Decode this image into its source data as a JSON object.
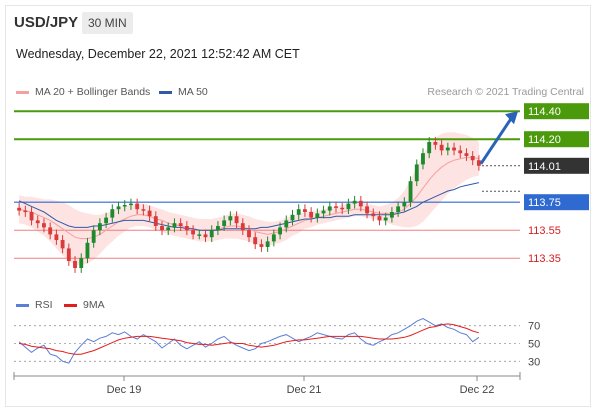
{
  "header": {
    "symbol": "USD/JPY",
    "timeframe": "30 MIN",
    "datetime": "Wednesday, December 22, 2021 12:52:42 AM CET"
  },
  "legend": {
    "ma20_label": "MA 20 + Bollinger Bands",
    "ma50_label": "MA 50",
    "credit": "Research © 2021 Trading Central",
    "rsi_label": "RSI",
    "ma9_label": "9MA"
  },
  "colors": {
    "resistance": "#4a9a0b",
    "support": "#2f6ad0",
    "support2": "#f08080",
    "support2_text": "#d52020",
    "ma20": "#f5a0a0",
    "band_fill": "#fde3e1",
    "ma50": "#2e5aa8",
    "rsi": "#5c7fd6",
    "ma9": "#e31e1e",
    "candle": "#d93a3a",
    "candle_up": "#1e8a2e",
    "arrow": "#2a62b8",
    "price_tag": "#333333"
  },
  "chart_data": {
    "type": "candlestick",
    "instrument": "USD/JPY",
    "interval": "30 MIN",
    "x_tick_labels": [
      "Dec 19",
      "Dec 21",
      "Dec 22"
    ],
    "ylim": [
      113.18,
      114.48
    ],
    "levels": [
      {
        "label": "114.40",
        "value": 114.4,
        "kind": "resistance"
      },
      {
        "label": "114.20",
        "value": 114.2,
        "kind": "resistance"
      },
      {
        "label": "113.75",
        "value": 113.75,
        "kind": "support"
      },
      {
        "label": "113.55",
        "value": 113.55,
        "kind": "support"
      },
      {
        "label": "113.35",
        "value": 113.35,
        "kind": "support"
      }
    ],
    "last_price": {
      "label": "114.01",
      "value": 114.01
    },
    "close": [
      113.69,
      113.68,
      113.62,
      113.6,
      113.57,
      113.52,
      113.48,
      113.42,
      113.33,
      113.28,
      113.35,
      113.46,
      113.55,
      113.6,
      113.64,
      113.7,
      113.72,
      113.73,
      113.74,
      113.7,
      113.69,
      113.65,
      113.58,
      113.55,
      113.57,
      113.6,
      113.58,
      113.55,
      113.52,
      113.52,
      113.5,
      113.55,
      113.58,
      113.62,
      113.65,
      113.6,
      113.55,
      113.5,
      113.45,
      113.43,
      113.47,
      113.52,
      113.57,
      113.62,
      113.66,
      113.7,
      113.68,
      113.64,
      113.67,
      113.69,
      113.72,
      113.71,
      113.7,
      113.74,
      113.76,
      113.72,
      113.67,
      113.65,
      113.62,
      113.64,
      113.68,
      113.72,
      113.75,
      113.9,
      114.02,
      114.1,
      114.18,
      114.16,
      114.12,
      114.14,
      114.12,
      114.1,
      114.08,
      114.05,
      114.01
    ],
    "ma20": [
      113.7,
      113.69,
      113.68,
      113.66,
      113.64,
      113.62,
      113.59,
      113.56,
      113.53,
      113.5,
      113.49,
      113.49,
      113.5,
      113.52,
      113.55,
      113.58,
      113.61,
      113.63,
      113.65,
      113.66,
      113.66,
      113.65,
      113.63,
      113.62,
      113.6,
      113.59,
      113.58,
      113.57,
      113.56,
      113.55,
      113.55,
      113.55,
      113.56,
      113.57,
      113.58,
      113.58,
      113.57,
      113.56,
      113.54,
      113.53,
      113.52,
      113.53,
      113.54,
      113.56,
      113.58,
      113.6,
      113.62,
      113.63,
      113.64,
      113.65,
      113.66,
      113.67,
      113.68,
      113.69,
      113.7,
      113.7,
      113.69,
      113.68,
      113.67,
      113.67,
      113.67,
      113.68,
      113.7,
      113.74,
      113.79,
      113.85,
      113.91,
      113.96,
      114.0,
      114.03,
      114.05,
      114.06,
      114.07,
      114.07,
      114.06
    ],
    "band_halfwidth": [
      0.1,
      0.1,
      0.11,
      0.12,
      0.13,
      0.15,
      0.17,
      0.19,
      0.2,
      0.2,
      0.19,
      0.18,
      0.16,
      0.14,
      0.12,
      0.11,
      0.1,
      0.09,
      0.08,
      0.08,
      0.08,
      0.08,
      0.08,
      0.08,
      0.08,
      0.08,
      0.08,
      0.08,
      0.08,
      0.08,
      0.08,
      0.08,
      0.08,
      0.08,
      0.09,
      0.09,
      0.09,
      0.09,
      0.09,
      0.09,
      0.09,
      0.08,
      0.08,
      0.08,
      0.07,
      0.07,
      0.06,
      0.06,
      0.05,
      0.05,
      0.05,
      0.05,
      0.05,
      0.05,
      0.05,
      0.05,
      0.05,
      0.05,
      0.05,
      0.06,
      0.08,
      0.1,
      0.13,
      0.17,
      0.21,
      0.24,
      0.25,
      0.25,
      0.24,
      0.22,
      0.2,
      0.18,
      0.16,
      0.14,
      0.12
    ],
    "ma50": [
      113.76,
      113.74,
      113.72,
      113.7,
      113.68,
      113.65,
      113.62,
      113.6,
      113.58,
      113.57,
      113.57,
      113.57,
      113.58,
      113.58,
      113.59,
      113.6,
      113.61,
      113.62,
      113.62,
      113.62,
      113.62,
      113.61,
      113.6,
      113.59,
      113.58,
      113.57,
      113.57,
      113.56,
      113.56,
      113.55,
      113.55,
      113.55,
      113.55,
      113.56,
      113.56,
      113.56,
      113.56,
      113.56,
      113.56,
      113.57,
      113.57,
      113.58,
      113.59,
      113.6,
      113.61,
      113.62,
      113.63,
      113.63,
      113.64,
      113.64,
      113.64,
      113.65,
      113.65,
      113.65,
      113.66,
      113.66,
      113.66,
      113.66,
      113.66,
      113.66,
      113.66,
      113.67,
      113.68,
      113.7,
      113.72,
      113.75,
      113.77,
      113.79,
      113.81,
      113.83,
      113.84,
      113.86,
      113.87,
      113.88,
      113.89
    ],
    "rsi_ylim": [
      18,
      82
    ],
    "rsi_ticks": [
      70,
      50,
      30
    ],
    "rsi": [
      52,
      46,
      40,
      45,
      48,
      38,
      36,
      30,
      28,
      40,
      48,
      55,
      52,
      56,
      58,
      62,
      60,
      63,
      58,
      55,
      60,
      56,
      52,
      45,
      50,
      55,
      48,
      44,
      48,
      52,
      46,
      50,
      55,
      58,
      52,
      48,
      45,
      42,
      44,
      50,
      52,
      55,
      58,
      60,
      56,
      52,
      55,
      58,
      62,
      60,
      58,
      56,
      55,
      60,
      62,
      55,
      50,
      48,
      52,
      55,
      60,
      62,
      66,
      70,
      75,
      78,
      74,
      70,
      72,
      68,
      66,
      62,
      60,
      52,
      57
    ],
    "rsi_ma9": [
      50,
      49,
      47,
      46,
      45,
      44,
      42,
      41,
      39,
      38,
      38,
      40,
      42,
      45,
      48,
      51,
      54,
      56,
      57,
      58,
      58,
      58,
      57,
      56,
      55,
      54,
      53,
      51,
      50,
      49,
      49,
      48,
      49,
      50,
      51,
      50,
      50,
      48,
      47,
      46,
      47,
      48,
      50,
      52,
      53,
      54,
      54,
      55,
      56,
      57,
      58,
      58,
      58,
      58,
      58,
      58,
      57,
      56,
      55,
      55,
      55,
      56,
      57,
      59,
      62,
      65,
      68,
      69,
      71,
      72,
      71,
      69,
      67,
      64,
      62
    ]
  }
}
